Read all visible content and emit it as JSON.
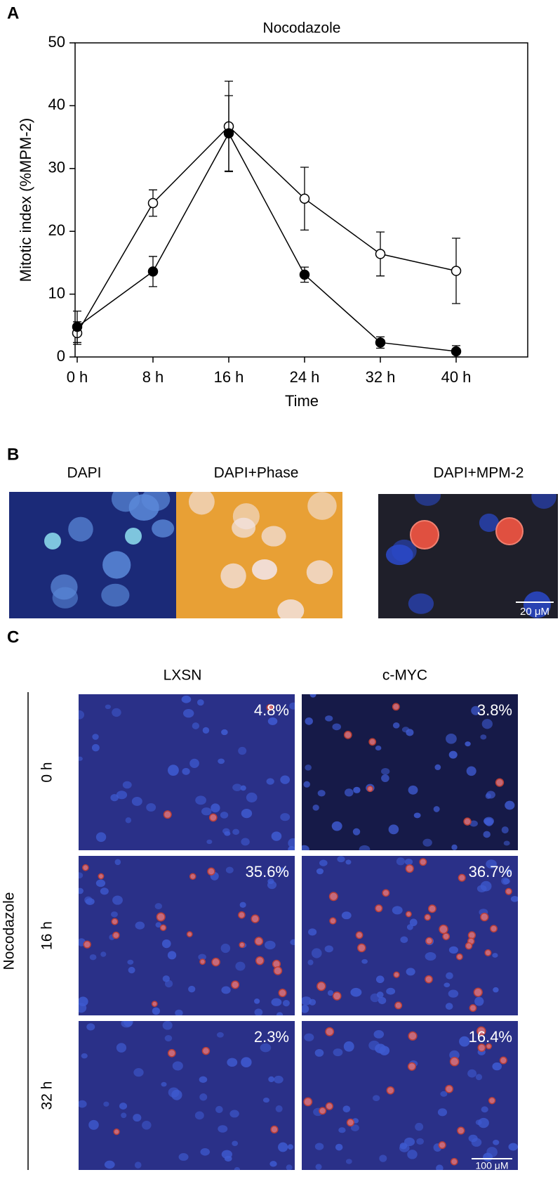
{
  "chart_data": {
    "type": "line",
    "panel_label": "A",
    "title": "Nocodazole",
    "x_label": "Time",
    "y_label": "Mitotic index (%MPM-2)",
    "categories": [
      "0 h",
      "8 h",
      "16 h",
      "24 h",
      "32 h",
      "40 h"
    ],
    "ylim": [
      0,
      50
    ],
    "yticks": [
      0,
      10,
      20,
      30,
      40,
      50
    ],
    "series": [
      {
        "color": "#000000",
        "marker": "open",
        "values": [
          3.8,
          24.5,
          36.7,
          25.2,
          16.4,
          13.7
        ],
        "errors": [
          1.8,
          2.1,
          7.2,
          5.0,
          3.5,
          5.2
        ]
      },
      {
        "color": "#000000",
        "marker": "filled",
        "values": [
          4.8,
          13.6,
          35.6,
          13.1,
          2.3,
          0.9
        ],
        "errors": [
          2.5,
          2.4,
          6.0,
          1.2,
          0.9,
          0.9
        ]
      }
    ]
  },
  "panel_b": {
    "label": "B",
    "images": [
      "DAPI",
      "DAPI+Phase",
      "DAPI+MPM-2"
    ],
    "scale_bar": "20 μM"
  },
  "panel_c": {
    "label": "C",
    "columns": [
      "LXSN",
      "c-MYC"
    ],
    "treatment": "Nocodazole",
    "rows": [
      {
        "time": "0 h",
        "values": [
          "4.8%",
          "3.8%"
        ]
      },
      {
        "time": "16 h",
        "values": [
          "35.6%",
          "36.7%"
        ]
      },
      {
        "time": "32 h",
        "values": [
          "2.3%",
          "16.4%"
        ]
      }
    ],
    "scale_bar": "100 μM"
  }
}
